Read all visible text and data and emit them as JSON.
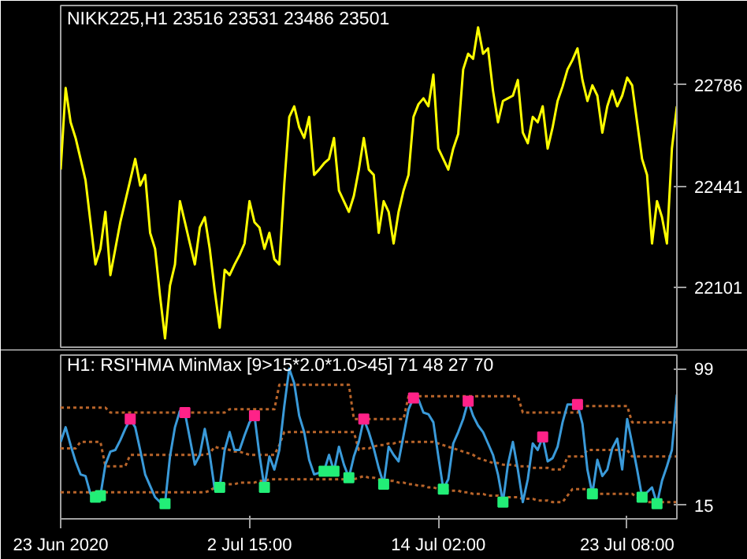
{
  "chart_data": [
    {
      "type": "line",
      "title": "NIKK225,H1  23516 23531 23486 23501",
      "ylim": [
        21898,
        23054
      ],
      "yticks": [
        22101,
        22441,
        22786
      ],
      "tick_labels": "y",
      "grid": false,
      "categories": [
        null,
        null,
        null,
        null,
        null,
        null,
        null,
        null,
        null,
        null,
        null,
        null,
        null,
        null,
        null,
        null,
        null,
        null,
        null,
        null,
        null,
        null,
        null,
        null,
        null,
        null,
        null,
        null,
        null,
        null,
        null,
        null,
        null,
        null,
        null,
        null,
        null,
        null,
        null,
        null,
        null,
        null,
        null,
        null,
        null,
        null,
        null,
        null,
        null,
        null,
        null,
        null,
        null,
        null,
        null,
        null,
        null,
        null,
        null,
        null,
        null,
        null,
        null,
        null,
        null,
        null,
        null,
        null,
        null,
        null,
        null,
        null,
        null,
        null,
        null,
        null,
        null,
        null,
        null,
        null,
        null,
        null,
        null,
        null,
        null,
        null,
        null,
        null,
        null,
        null,
        null,
        null,
        null,
        null,
        null,
        null,
        null,
        null,
        null,
        null,
        null,
        null,
        null,
        null,
        null,
        null,
        null,
        null,
        null,
        null,
        null,
        null,
        null,
        null,
        null,
        null,
        null,
        null,
        null,
        null,
        null,
        null,
        null,
        null,
        null
      ],
      "series": [
        {
          "color": "#ffff00",
          "values": [
            22499,
            22775,
            22659,
            22606,
            22535,
            22463,
            22321,
            22178,
            22231,
            22356,
            22142,
            22231,
            22321,
            22392,
            22463,
            22535,
            22445,
            22481,
            22285,
            22231,
            22071,
            21928,
            22107,
            22178,
            22392,
            22321,
            22249,
            22178,
            22303,
            22338,
            22231,
            22089,
            21964,
            22160,
            22142,
            22178,
            22210,
            22249,
            22392,
            22321,
            22303,
            22231,
            22285,
            22196,
            22178,
            22450,
            22677,
            22713,
            22642,
            22606,
            22677,
            22481,
            22499,
            22520,
            22535,
            22606,
            22428,
            22392,
            22356,
            22410,
            22499,
            22606,
            22499,
            22481,
            22285,
            22392,
            22356,
            22249,
            22356,
            22428,
            22481,
            22677,
            22720,
            22740,
            22713,
            22820,
            22570,
            22535,
            22499,
            22570,
            22620,
            22838,
            22891,
            22874,
            22980,
            22891,
            22909,
            22766,
            22659,
            22731,
            22740,
            22749,
            22802,
            22624,
            22588,
            22677,
            22659,
            22713,
            22570,
            22642,
            22731,
            22780,
            22838,
            22870,
            22909,
            22802,
            22731,
            22784,
            22749,
            22624,
            22713,
            22766,
            22713,
            22749,
            22810,
            22784,
            22659,
            22535,
            22481,
            22249,
            22392,
            22338,
            22249,
            22570,
            22713
          ]
        }
      ]
    },
    {
      "type": "line",
      "title": "H1: RSI'HMA MinMax [9>15*2.0*1.0>45]  71 48 27 70",
      "ylim": [
        6.7,
        107.3
      ],
      "yticks": [
        15,
        99
      ],
      "grid": false,
      "categories": [
        "23 Jun 2020",
        null,
        null,
        null,
        null,
        null,
        null,
        null,
        null,
        null,
        null,
        null,
        null,
        null,
        null,
        null,
        null,
        null,
        null,
        null,
        null,
        null,
        null,
        null,
        null,
        null,
        null,
        null,
        null,
        null,
        null,
        null,
        null,
        null,
        null,
        null,
        null,
        null,
        "2 Jul 15:00",
        null,
        null,
        null,
        null,
        null,
        null,
        null,
        null,
        null,
        null,
        null,
        null,
        null,
        null,
        null,
        null,
        null,
        null,
        null,
        null,
        null,
        null,
        null,
        null,
        null,
        null,
        null,
        null,
        null,
        null,
        null,
        null,
        null,
        null,
        null,
        null,
        null,
        "14 Jul 02:00",
        null,
        null,
        null,
        null,
        null,
        null,
        null,
        null,
        null,
        null,
        null,
        null,
        null,
        null,
        null,
        null,
        null,
        null,
        null,
        null,
        null,
        null,
        null,
        null,
        null,
        null,
        null,
        null,
        null,
        null,
        null,
        null,
        null,
        null,
        null,
        null,
        null,
        "23 Jul 08:00",
        null,
        null,
        null,
        null,
        null,
        null,
        null,
        null,
        null,
        null
      ],
      "series": [
        {
          "color": "#b8642a",
          "line_style": "dotted",
          "values": [
            75,
            75,
            75,
            75,
            75,
            75,
            75,
            75,
            75,
            75,
            72,
            72,
            72,
            72,
            72,
            72,
            72,
            72,
            72,
            72,
            72,
            72,
            72,
            72,
            72,
            72,
            72,
            72,
            72,
            72,
            72,
            72,
            72,
            72,
            74,
            74,
            74,
            74,
            74,
            74,
            74,
            74,
            74,
            74,
            89,
            89,
            89,
            89,
            89,
            89,
            89,
            89,
            89,
            89,
            89,
            89,
            89,
            89,
            89,
            68,
            68,
            68,
            68,
            68,
            68,
            68,
            68,
            68,
            68,
            68,
            82,
            82,
            82,
            82,
            82,
            82,
            82,
            82,
            82,
            82,
            82,
            82,
            82,
            82,
            82,
            82,
            82,
            82,
            82,
            82,
            82,
            82,
            82,
            72,
            72,
            72,
            72,
            72,
            72,
            72,
            72,
            72,
            72,
            72,
            72,
            76,
            76,
            76,
            76,
            76,
            76,
            76,
            76,
            76,
            76,
            66,
            66,
            66,
            66,
            66,
            66,
            66,
            66,
            66,
            66
          ]
        },
        {
          "color": "#b8642a",
          "line_style": "dotted",
          "values": [
            50,
            50,
            50,
            50,
            54,
            54,
            54,
            54,
            54,
            39,
            39,
            39,
            39,
            39,
            46,
            46,
            46,
            46,
            46,
            46,
            46,
            46,
            46,
            46,
            46,
            46,
            46,
            46,
            46,
            46,
            47,
            51,
            50,
            50,
            49,
            48,
            48,
            47,
            46,
            46,
            46,
            46,
            46,
            46,
            52,
            60,
            60,
            60,
            60,
            60,
            60,
            60,
            60,
            60,
            60,
            60,
            60,
            60,
            60,
            60,
            49,
            50,
            50,
            51,
            52,
            52,
            53,
            53,
            54,
            54,
            54,
            54,
            54,
            54,
            54,
            54,
            53,
            52,
            51,
            50,
            49,
            48,
            47,
            46,
            44,
            43,
            42,
            41,
            41,
            40,
            40,
            40,
            39,
            39,
            39,
            38,
            38,
            38,
            38,
            37,
            37,
            37,
            45,
            45,
            45,
            45,
            49,
            49,
            49,
            49,
            49,
            49,
            49,
            49,
            49,
            45,
            45,
            45,
            45,
            45,
            45,
            45,
            45,
            45,
            45
          ]
        },
        {
          "color": "#b8642a",
          "line_style": "dotted",
          "values": [
            23,
            23,
            23,
            23,
            23,
            23,
            23,
            23,
            23,
            23,
            23,
            23,
            23,
            23,
            23,
            23,
            23,
            23,
            23,
            23,
            23,
            23,
            23,
            23,
            23,
            23,
            23,
            23,
            23,
            23,
            24,
            26,
            28,
            28,
            28,
            28,
            29,
            29,
            29,
            29,
            30,
            30,
            31,
            31,
            31,
            31,
            31,
            31,
            31,
            31,
            31,
            31,
            31,
            31,
            31,
            31,
            31,
            31,
            31,
            31,
            32,
            33,
            32,
            32,
            31,
            31,
            30,
            30,
            29,
            29,
            28,
            28,
            27,
            27,
            26,
            26,
            25,
            25,
            24,
            24,
            24,
            23,
            23,
            22,
            22,
            22,
            21,
            21,
            21,
            20,
            20,
            20,
            20,
            19,
            19,
            19,
            18,
            18,
            18,
            17,
            17,
            17,
            21,
            25,
            25,
            25,
            25,
            24,
            22,
            22,
            22,
            22,
            22,
            22,
            22,
            22,
            20,
            18,
            17,
            17,
            17,
            17,
            17,
            17,
            17
          ]
        },
        {
          "color": "#3a9ad9",
          "line_style": "solid",
          "values": [
            54,
            63,
            52,
            42,
            34,
            33,
            22,
            20,
            21,
            40,
            48,
            49,
            55,
            62,
            68,
            63,
            49,
            34,
            27,
            20,
            17,
            16,
            45,
            63,
            73,
            72,
            56,
            40,
            46,
            62,
            46,
            25,
            26,
            49,
            60,
            49,
            49,
            58,
            66,
            70,
            46,
            26,
            45,
            37,
            49,
            76,
            99,
            90,
            70,
            60,
            43,
            34,
            35,
            36,
            46,
            36,
            51,
            40,
            32,
            45,
            54,
            68,
            60,
            50,
            38,
            28,
            51,
            46,
            42,
            58,
            74,
            81,
            80,
            72,
            71,
            66,
            45,
            25,
            31,
            53,
            60,
            68,
            79,
            70,
            64,
            60,
            53,
            46,
            34,
            17,
            40,
            54,
            37,
            17,
            31,
            53,
            49,
            57,
            42,
            44,
            51,
            66,
            77,
            77,
            77,
            65,
            37,
            22,
            43,
            33,
            37,
            50,
            56,
            37,
            68,
            53,
            37,
            20,
            23,
            26,
            16,
            30,
            39,
            49,
            83
          ]
        },
        {
          "type": "scatter",
          "marker": "square",
          "color": "#ff2288",
          "values": [
            null,
            null,
            null,
            null,
            null,
            null,
            null,
            null,
            null,
            null,
            null,
            null,
            null,
            null,
            68,
            null,
            null,
            null,
            null,
            null,
            null,
            null,
            null,
            null,
            null,
            72,
            null,
            null,
            null,
            null,
            null,
            null,
            null,
            null,
            null,
            null,
            null,
            null,
            null,
            70,
            null,
            null,
            null,
            null,
            null,
            null,
            null,
            null,
            null,
            null,
            null,
            null,
            null,
            null,
            null,
            null,
            null,
            null,
            null,
            null,
            null,
            68,
            null,
            null,
            null,
            null,
            null,
            null,
            null,
            null,
            null,
            81,
            null,
            null,
            null,
            null,
            null,
            null,
            null,
            null,
            null,
            null,
            79,
            null,
            null,
            null,
            null,
            null,
            null,
            null,
            null,
            null,
            null,
            null,
            null,
            null,
            null,
            57,
            null,
            null,
            null,
            null,
            null,
            null,
            77,
            null,
            null,
            null,
            null,
            null,
            null,
            null,
            null,
            null,
            null,
            null,
            null,
            null,
            null,
            null,
            null,
            null,
            null,
            null,
            null
          ]
        },
        {
          "type": "scatter",
          "marker": "square",
          "color": "#22ee77",
          "values": [
            null,
            null,
            null,
            null,
            null,
            null,
            null,
            20,
            21,
            null,
            null,
            null,
            null,
            null,
            null,
            null,
            null,
            null,
            null,
            null,
            null,
            16,
            null,
            null,
            null,
            null,
            null,
            null,
            null,
            null,
            null,
            null,
            26,
            null,
            null,
            null,
            null,
            null,
            null,
            null,
            null,
            26,
            null,
            null,
            null,
            null,
            null,
            null,
            null,
            null,
            null,
            null,
            null,
            36,
            null,
            36,
            null,
            null,
            32,
            null,
            null,
            null,
            null,
            null,
            null,
            28,
            null,
            null,
            null,
            null,
            null,
            null,
            null,
            null,
            null,
            null,
            null,
            25,
            null,
            null,
            null,
            null,
            null,
            null,
            null,
            null,
            null,
            null,
            null,
            17,
            null,
            null,
            null,
            null,
            null,
            null,
            null,
            null,
            null,
            null,
            null,
            null,
            null,
            null,
            null,
            null,
            null,
            22,
            null,
            null,
            null,
            null,
            null,
            null,
            null,
            null,
            null,
            20,
            null,
            null,
            16,
            null,
            null,
            null,
            null
          ]
        }
      ]
    }
  ]
}
